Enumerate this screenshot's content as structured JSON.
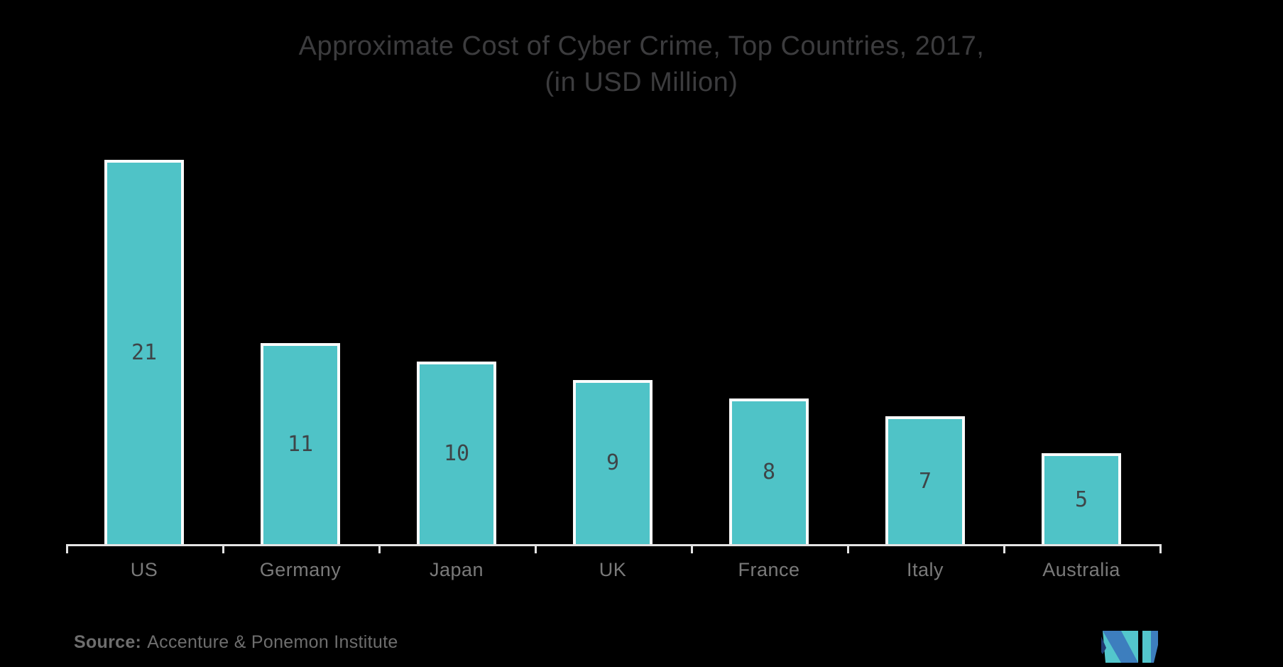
{
  "title": {
    "line1": "Approximate Cost of Cyber Crime, Top Countries, 2017,",
    "line2": "(in USD Million)"
  },
  "source": {
    "label": "Source:",
    "value": "Accenture & Ponemon Institute"
  },
  "icons": {
    "logo": "mordor-intelligence-m-logo"
  },
  "colors": {
    "background": "#000000",
    "bar_fill": "#4FC3C7",
    "bar_stroke": "#FCFCFC",
    "value_label": "#3E4548",
    "category_label": "#7A7A7A",
    "title_text": "#3C3C3E",
    "source_text": "#6E6E6E",
    "axis_line": "#E4E4E4",
    "logo_teal": "#53C6CC",
    "logo_blue": "#3D7EBE",
    "logo_navy": "#203B72"
  },
  "chart_data": {
    "type": "bar",
    "title": "Approximate Cost of Cyber Crime, Top Countries, 2017, (in USD Million)",
    "categories": [
      "US",
      "Germany",
      "Japan",
      "UK",
      "France",
      "Italy",
      "Australia"
    ],
    "values": [
      21,
      11,
      10,
      9,
      8,
      7,
      5
    ],
    "series_name": "Approximate cost of cyber crime",
    "xlabel": "",
    "ylabel": "",
    "ylim": [
      0,
      21
    ],
    "grid": false,
    "legend": false,
    "bar_value_labels_shown": true,
    "y_axis_shown": false,
    "x_axis_shown": true
  }
}
